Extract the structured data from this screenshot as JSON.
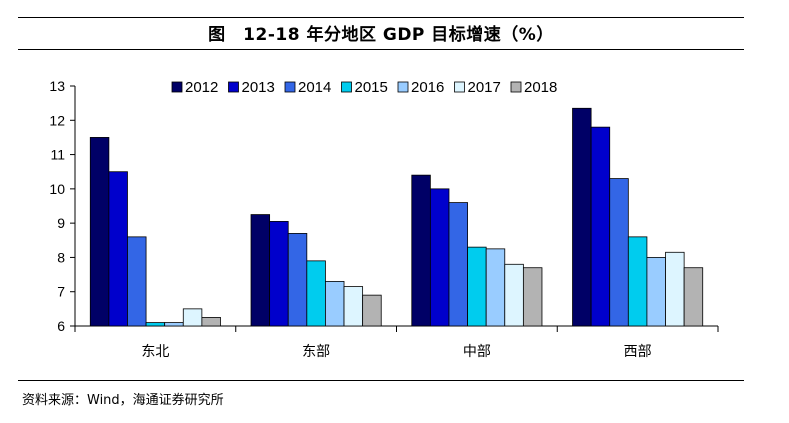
{
  "title": "图　12-18 年分地区 GDP 目标增速（%）",
  "source": "资料来源：Wind，海通证券研究所",
  "chart_data": {
    "type": "bar",
    "title": "图　12-18 年分地区 GDP 目标增速（%）",
    "xlabel": "",
    "ylabel": "",
    "categories": [
      "东北",
      "东部",
      "中部",
      "西部"
    ],
    "ylim": [
      6,
      13
    ],
    "yticks": [
      6,
      7,
      8,
      9,
      10,
      11,
      12,
      13
    ],
    "legend_position": "top",
    "grid": false,
    "series": [
      {
        "name": "2012",
        "color": "#000066",
        "values": [
          11.5,
          9.25,
          10.4,
          12.35
        ]
      },
      {
        "name": "2013",
        "color": "#0000cc",
        "values": [
          10.5,
          9.05,
          10.0,
          11.8
        ]
      },
      {
        "name": "2014",
        "color": "#3366e6",
        "values": [
          8.6,
          8.7,
          9.6,
          10.3
        ]
      },
      {
        "name": "2015",
        "color": "#00ccee",
        "values": [
          6.1,
          7.9,
          8.3,
          8.6
        ]
      },
      {
        "name": "2016",
        "color": "#99ccff",
        "values": [
          6.1,
          7.3,
          8.25,
          8.0
        ]
      },
      {
        "name": "2017",
        "color": "#ddf5ff",
        "values": [
          6.5,
          7.15,
          7.8,
          8.15
        ]
      },
      {
        "name": "2018",
        "color": "#b3b3b3",
        "values": [
          6.25,
          6.9,
          7.7,
          7.7
        ]
      }
    ]
  }
}
